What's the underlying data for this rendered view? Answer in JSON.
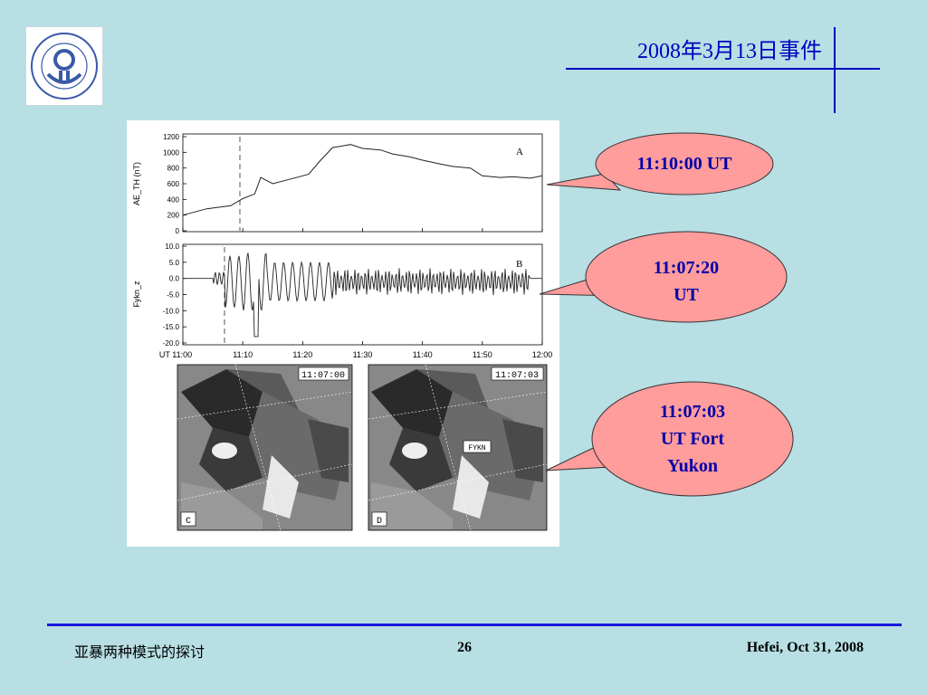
{
  "slide": {
    "title": "2008年3月13日事件",
    "logo_text": "UNIVERSITY OF SCIENCE AND TECHNOLOGY OF CHINA"
  },
  "figure": {
    "panel_a": {
      "letter": "A",
      "ylabel": "AE_TH (nT)",
      "yticks": [
        "1200",
        "1000",
        "800",
        "600",
        "400",
        "200",
        "0"
      ]
    },
    "panel_b": {
      "letter": "B",
      "ylabel": "Fykn_z",
      "yticks": [
        "10.0",
        "5.0",
        "0.0",
        "-5.0",
        "-10.0",
        "-15.0",
        "-20.0"
      ]
    },
    "xticks": [
      "UT 11:00",
      "11:10",
      "11:20",
      "11:30",
      "11:40",
      "11:50",
      "12:00"
    ],
    "image_c": {
      "timestamp": "11:07:00",
      "letter": "C"
    },
    "image_d": {
      "timestamp": "11:07:03",
      "letter": "D",
      "marker": "FYKN"
    }
  },
  "chart_data": {
    "type": "line",
    "x_label": "UT",
    "x_range": [
      "11:00",
      "12:00"
    ],
    "panels": [
      {
        "id": "A",
        "ylabel": "AE_TH (nT)",
        "ylim": [
          0,
          1200
        ],
        "marker_line": "11:10",
        "x": [
          "11:00",
          "11:04",
          "11:08",
          "11:10",
          "11:12",
          "11:13",
          "11:15",
          "11:18",
          "11:21",
          "11:23",
          "11:25",
          "11:28",
          "11:30",
          "11:33",
          "11:35",
          "11:38",
          "11:40",
          "11:43",
          "11:45",
          "11:48",
          "11:50",
          "11:53",
          "11:55",
          "11:58",
          "12:00"
        ],
        "values": [
          200,
          280,
          320,
          410,
          470,
          680,
          600,
          660,
          720,
          900,
          1060,
          1100,
          1050,
          1030,
          980,
          940,
          900,
          850,
          820,
          800,
          700,
          680,
          690,
          670,
          700
        ]
      },
      {
        "id": "B",
        "ylabel": "Fykn_z",
        "ylim": [
          -20,
          10
        ],
        "marker_line": "11:07:20"
      }
    ]
  },
  "callouts": [
    {
      "lines": [
        "11:10:00 UT"
      ]
    },
    {
      "lines": [
        "11:07:20",
        "UT"
      ]
    },
    {
      "lines": [
        "11:07:03",
        "UT Fort",
        "Yukon"
      ]
    }
  ],
  "footer": {
    "left": "亚暴两种模式的探讨",
    "page_number": "26",
    "right": "Hefei, Oct 31, 2008"
  },
  "colors": {
    "background": "#b7dfe4",
    "accent": "#0000c0",
    "bubble_fill": "#ff9c9c"
  }
}
